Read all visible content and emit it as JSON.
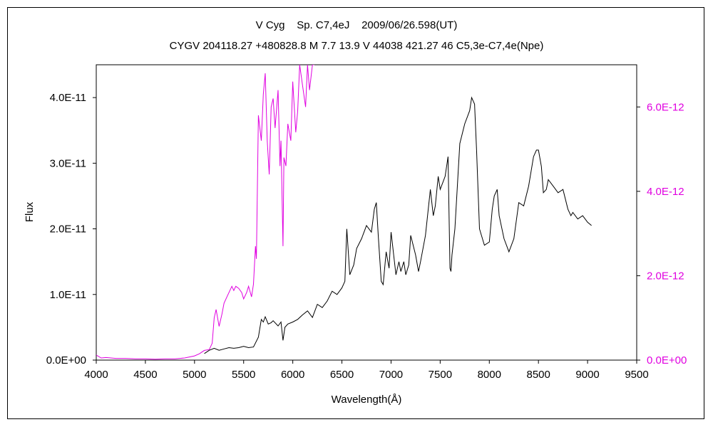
{
  "chart_data": {
    "type": "line",
    "title": "V Cyg    Sp. C7,4eJ    2009/06/26.598(UT)",
    "subtitle": "CYGV 204118.27 +480828.8 M 7.7 13.9 V 44038 421.27 46 C5,3e-C7,4e(Npe)",
    "xlabel": "Wavelength(Å)",
    "ylabel": "Flux",
    "xlim": [
      4000,
      9500
    ],
    "ylim": [
      0,
      4.5e-11
    ],
    "y2lim": [
      0,
      7e-12
    ],
    "grid": false,
    "x_ticks": [
      "4000",
      "4500",
      "5000",
      "5500",
      "6000",
      "6500",
      "7000",
      "7500",
      "8000",
      "8500",
      "9000",
      "9500"
    ],
    "y_ticks": [
      "0.0E+00",
      "1.0E-11",
      "2.0E-11",
      "3.0E-11",
      "4.0E-11"
    ],
    "y2_ticks": [
      "0.0E+00",
      "2.0E-12",
      "4.0E-12",
      "6.0E-12"
    ],
    "series": [
      {
        "axis": "left",
        "color": "#000000",
        "x": [
          5100,
          5150,
          5200,
          5250,
          5300,
          5350,
          5400,
          5450,
          5500,
          5550,
          5600,
          5650,
          5680,
          5700,
          5720,
          5750,
          5780,
          5800,
          5850,
          5880,
          5900,
          5920,
          5950,
          6000,
          6050,
          6100,
          6150,
          6200,
          6250,
          6300,
          6350,
          6400,
          6450,
          6500,
          6530,
          6550,
          6580,
          6620,
          6650,
          6700,
          6750,
          6800,
          6830,
          6850,
          6870,
          6900,
          6920,
          6950,
          6980,
          7000,
          7050,
          7080,
          7100,
          7130,
          7150,
          7180,
          7200,
          7250,
          7280,
          7300,
          7350,
          7400,
          7430,
          7450,
          7480,
          7500,
          7550,
          7580,
          7600,
          7610,
          7620,
          7650,
          7700,
          7750,
          7800,
          7820,
          7850,
          7870,
          7900,
          7950,
          8000,
          8030,
          8050,
          8080,
          8100,
          8150,
          8200,
          8250,
          8300,
          8350,
          8400,
          8450,
          8480,
          8500,
          8530,
          8550,
          8580,
          8600,
          8650,
          8700,
          8750,
          8800,
          8830,
          8850,
          8900,
          8950,
          9000,
          9040
        ],
        "y": [
          1e-12,
          1.5e-12,
          1.8e-12,
          1.5e-12,
          1.7e-12,
          1.9e-12,
          1.8e-12,
          1.9e-12,
          2.1e-12,
          1.9e-12,
          2e-12,
          3.5e-12,
          6.2e-12,
          5.8e-12,
          6.6e-12,
          5.5e-12,
          5.7e-12,
          6e-12,
          5.2e-12,
          5.8e-12,
          3e-12,
          5e-12,
          5.5e-12,
          5.8e-12,
          6.2e-12,
          6.9e-12,
          7.5e-12,
          6.5e-12,
          8.5e-12,
          8e-12,
          9e-12,
          1.05e-11,
          1e-11,
          1.1e-11,
          1.2e-11,
          2e-11,
          1.3e-11,
          1.45e-11,
          1.7e-11,
          1.85e-11,
          2.05e-11,
          1.95e-11,
          2.3e-11,
          2.4e-11,
          1.9e-11,
          1.2e-11,
          1.15e-11,
          1.65e-11,
          1.4e-11,
          1.95e-11,
          1.3e-11,
          1.5e-11,
          1.35e-11,
          1.5e-11,
          1.3e-11,
          1.45e-11,
          1.9e-11,
          1.6e-11,
          1.35e-11,
          1.5e-11,
          1.9e-11,
          2.6e-11,
          2.2e-11,
          2.35e-11,
          2.8e-11,
          2.6e-11,
          2.8e-11,
          3.1e-11,
          1.4e-11,
          1.35e-11,
          1.6e-11,
          2e-11,
          3.3e-11,
          3.6e-11,
          3.8e-11,
          4e-11,
          3.9e-11,
          3.2e-11,
          2e-11,
          1.75e-11,
          1.8e-11,
          2.3e-11,
          2.5e-11,
          2.6e-11,
          2.2e-11,
          1.85e-11,
          1.65e-11,
          1.85e-11,
          2.4e-11,
          2.35e-11,
          2.65e-11,
          3.1e-11,
          3.2e-11,
          3.2e-11,
          2.95e-11,
          2.55e-11,
          2.6e-11,
          2.75e-11,
          2.65e-11,
          2.55e-11,
          2.6e-11,
          2.3e-11,
          2.2e-11,
          2.25e-11,
          2.15e-11,
          2.2e-11,
          2.1e-11,
          2.05e-11
        ]
      },
      {
        "axis": "right",
        "color": "#e000e0",
        "x": [
          4000,
          4050,
          4100,
          4200,
          4300,
          4400,
          4500,
          4600,
          4700,
          4800,
          4900,
          5000,
          5050,
          5100,
          5150,
          5180,
          5200,
          5220,
          5250,
          5280,
          5300,
          5330,
          5350,
          5380,
          5400,
          5420,
          5450,
          5480,
          5500,
          5530,
          5550,
          5580,
          5600,
          5620,
          5630,
          5650,
          5680,
          5700,
          5720,
          5740,
          5760,
          5780,
          5800,
          5820,
          5850,
          5870,
          5880,
          5900,
          5910,
          5930,
          5950,
          5980,
          6000,
          6030,
          6050,
          6070,
          6100,
          6130,
          6150,
          6170,
          6200,
          6220
        ],
        "y": [
          1.2e-13,
          5e-14,
          6e-14,
          4e-14,
          4e-14,
          3e-14,
          3e-14,
          2e-14,
          3e-14,
          3e-14,
          5e-14,
          1e-13,
          1.5e-13,
          2.3e-13,
          2.5e-13,
          4e-13,
          1e-12,
          1.2e-12,
          8e-13,
          1.1e-12,
          1.35e-12,
          1.5e-12,
          1.6e-12,
          1.75e-12,
          1.65e-12,
          1.75e-12,
          1.7e-12,
          1.6e-12,
          1.45e-12,
          1.6e-12,
          1.75e-12,
          1.5e-12,
          1.8e-12,
          2.7e-12,
          2.4e-12,
          5.8e-12,
          5.2e-12,
          6.3e-12,
          6.8e-12,
          5.2e-12,
          4.4e-12,
          6e-12,
          6.2e-12,
          5.5e-12,
          6.4e-12,
          4.6e-12,
          5.2e-12,
          2.7e-12,
          4.8e-12,
          4.6e-12,
          5.6e-12,
          5.2e-12,
          6.6e-12,
          5.4e-12,
          5.9e-12,
          7e-12,
          6.5e-12,
          6e-12,
          7e-12,
          6.4e-12,
          7e-12,
          7e-12
        ]
      }
    ]
  }
}
